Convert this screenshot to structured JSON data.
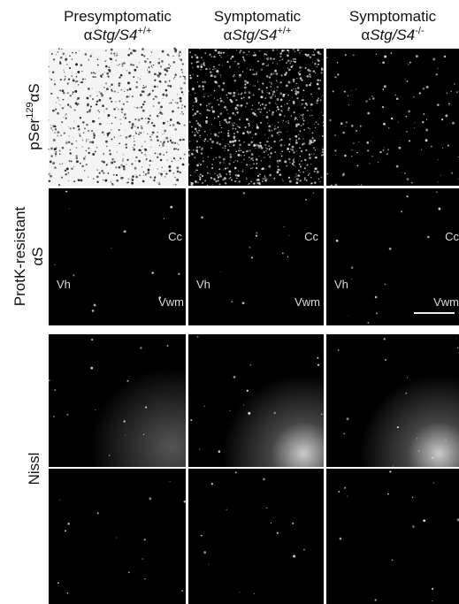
{
  "columns": [
    {
      "stage": "Presymptomatic",
      "genotype_prefix": "α",
      "genotype_italic": "Stg/S4",
      "genotype_sup": "+/+"
    },
    {
      "stage": "Symptomatic",
      "genotype_prefix": "α",
      "genotype_italic": "Stg/S4",
      "genotype_sup": "+/+"
    },
    {
      "stage": "Symptomatic",
      "genotype_prefix": "α",
      "genotype_italic": "Stg/S4",
      "genotype_sup": "-/-"
    }
  ],
  "rows": [
    {
      "label_prefix": "pSer",
      "label_sup": "129",
      "label_suffix": "αS"
    },
    {
      "label_line1": "ProtK-resistant",
      "label_line2": "αS"
    },
    {
      "label": "Nissl"
    }
  ],
  "region_labels": {
    "cc": "Cc",
    "vh": "Vh",
    "vwm": "Vwm"
  }
}
